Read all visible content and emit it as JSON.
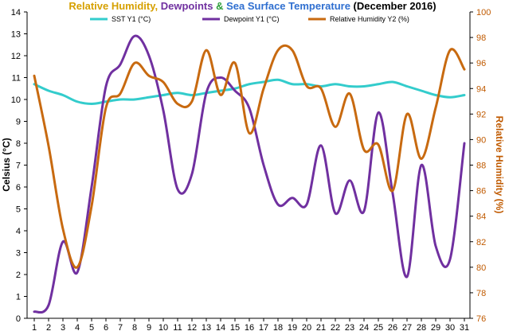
{
  "chart_data": {
    "type": "line",
    "title_parts": [
      {
        "text": "Relative Humidity",
        "color": "#d6a000"
      },
      {
        "text": ", ",
        "color": "#d6a000"
      },
      {
        "text": "Dewpoints",
        "color": "#7030a0"
      },
      {
        "text": " & ",
        "color": "#2e9e3a"
      },
      {
        "text": "Sea Surface Temperature",
        "color": "#2f6fd0"
      },
      {
        "text": " (December 2016)",
        "color": "#000000"
      }
    ],
    "x": [
      1,
      2,
      3,
      4,
      5,
      6,
      7,
      8,
      9,
      10,
      11,
      12,
      13,
      14,
      15,
      16,
      17,
      18,
      19,
      20,
      21,
      22,
      23,
      24,
      25,
      26,
      27,
      28,
      29,
      30,
      31
    ],
    "xlim": [
      1,
      31
    ],
    "y_left": {
      "label": "Celsius (°C)",
      "lim": [
        0,
        14
      ],
      "ticks": [
        0,
        1,
        2,
        3,
        4,
        5,
        6,
        7,
        8,
        9,
        10,
        11,
        12,
        13,
        14
      ],
      "color": "#000000"
    },
    "y_right": {
      "label": "Relative Humidity  (%)",
      "lim": [
        76,
        100
      ],
      "ticks": [
        76,
        78,
        80,
        82,
        84,
        86,
        88,
        90,
        92,
        94,
        96,
        98,
        100
      ],
      "color": "#c05a00"
    },
    "grid": false,
    "legend_position": "top",
    "series": [
      {
        "name": "SST Y1 (°C)",
        "axis": "left",
        "color": "#33cccc",
        "values": [
          10.7,
          10.4,
          10.2,
          9.9,
          9.8,
          9.9,
          10.0,
          10.0,
          10.1,
          10.2,
          10.3,
          10.2,
          10.3,
          10.4,
          10.5,
          10.7,
          10.8,
          10.9,
          10.7,
          10.7,
          10.6,
          10.7,
          10.6,
          10.6,
          10.7,
          10.8,
          10.6,
          10.4,
          10.2,
          10.1,
          10.2
        ]
      },
      {
        "name": "Dewpoint Y1 (°C)",
        "axis": "left",
        "color": "#7030a0",
        "values": [
          0.3,
          0.6,
          3.5,
          2.1,
          6.0,
          10.6,
          11.6,
          12.9,
          12.0,
          9.5,
          5.9,
          6.6,
          10.3,
          11.0,
          10.4,
          9.6,
          7.0,
          5.2,
          5.5,
          5.2,
          7.9,
          4.8,
          6.3,
          4.9,
          9.4,
          5.7,
          1.9,
          7.0,
          3.3,
          2.7,
          8.0
        ]
      },
      {
        "name": "Relative Humidity Y2 (%)",
        "axis": "right",
        "color": "#c86a10",
        "values": [
          95.0,
          89.5,
          83.0,
          80.0,
          84.8,
          92.5,
          93.6,
          96.0,
          95.0,
          94.5,
          92.8,
          93.0,
          97.0,
          93.5,
          96.0,
          90.5,
          94.0,
          97.0,
          97.0,
          94.2,
          94.0,
          91.0,
          93.6,
          89.2,
          89.6,
          86.0,
          92.0,
          88.5,
          92.5,
          97.0,
          95.5
        ]
      }
    ]
  }
}
